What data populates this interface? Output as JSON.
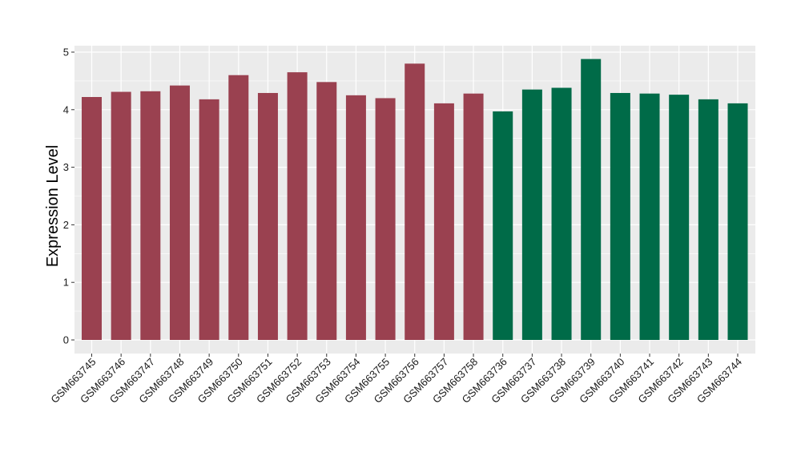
{
  "chart_data": {
    "type": "bar",
    "title": "",
    "xlabel": "",
    "ylabel": "Expression Level",
    "ylim": [
      0,
      5
    ],
    "yticks": [
      0,
      1,
      2,
      3,
      4,
      5
    ],
    "grid": true,
    "categories": [
      "GSM663745",
      "GSM663746",
      "GSM663747",
      "GSM663748",
      "GSM663749",
      "GSM663750",
      "GSM663751",
      "GSM663752",
      "GSM663753",
      "GSM663754",
      "GSM663755",
      "GSM663756",
      "GSM663757",
      "GSM663758",
      "GSM663736",
      "GSM663737",
      "GSM663738",
      "GSM663739",
      "GSM663740",
      "GSM663741",
      "GSM663742",
      "GSM663743",
      "GSM663744"
    ],
    "values": [
      4.22,
      4.31,
      4.32,
      4.42,
      4.18,
      4.6,
      4.29,
      4.65,
      4.48,
      4.25,
      4.2,
      4.8,
      4.11,
      4.28,
      3.97,
      4.35,
      4.38,
      4.88,
      4.29,
      4.28,
      4.26,
      4.18,
      4.11
    ],
    "group_colors": [
      "#9a4150",
      "#9a4150",
      "#9a4150",
      "#9a4150",
      "#9a4150",
      "#9a4150",
      "#9a4150",
      "#9a4150",
      "#9a4150",
      "#9a4150",
      "#9a4150",
      "#9a4150",
      "#9a4150",
      "#9a4150",
      "#006b48",
      "#006b48",
      "#006b48",
      "#006b48",
      "#006b48",
      "#006b48",
      "#006b48",
      "#006b48",
      "#006b48"
    ],
    "panel_background": "#ebebeb",
    "grid_color": "#ffffff"
  }
}
